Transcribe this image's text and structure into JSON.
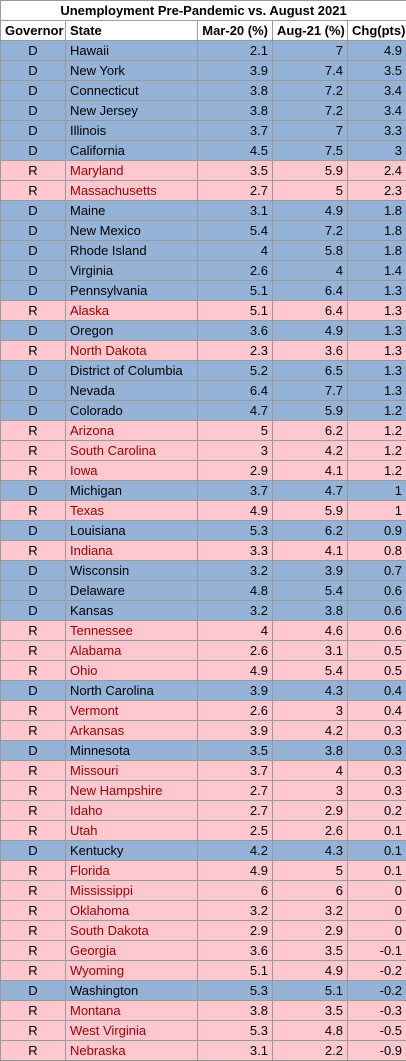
{
  "title": "Unemployment Pre-Pandemic vs. August 2021",
  "table": {
    "header": [
      "Governor",
      "State",
      "Mar-20 (%)",
      "Aug-21 (%)",
      "Chg(pts)"
    ],
    "row_colors": {
      "D": {
        "fill": "#95b3d7",
        "state": "#000000"
      },
      "R": {
        "fill": "#ffc7ce",
        "state": "#9c0006"
      }
    },
    "rows": [
      [
        "D",
        "Hawaii",
        2.1,
        7,
        4.9
      ],
      [
        "D",
        "New York",
        3.9,
        7.4,
        3.5
      ],
      [
        "D",
        "Connecticut",
        3.8,
        7.2,
        3.4
      ],
      [
        "D",
        "New Jersey",
        3.8,
        7.2,
        3.4
      ],
      [
        "D",
        "Illinois",
        3.7,
        7,
        3.3
      ],
      [
        "D",
        "California",
        4.5,
        7.5,
        3
      ],
      [
        "R",
        "Maryland",
        3.5,
        5.9,
        2.4
      ],
      [
        "R",
        "Massachusetts",
        2.7,
        5,
        2.3
      ],
      [
        "D",
        "Maine",
        3.1,
        4.9,
        1.8
      ],
      [
        "D",
        "New Mexico",
        5.4,
        7.2,
        1.8
      ],
      [
        "D",
        "Rhode Island",
        4,
        5.8,
        1.8
      ],
      [
        "D",
        "Virginia",
        2.6,
        4,
        1.4
      ],
      [
        "D",
        "Pennsylvania",
        5.1,
        6.4,
        1.3
      ],
      [
        "R",
        "Alaska",
        5.1,
        6.4,
        1.3
      ],
      [
        "D",
        "Oregon",
        3.6,
        4.9,
        1.3
      ],
      [
        "R",
        "North Dakota",
        2.3,
        3.6,
        1.3
      ],
      [
        "D",
        "District of Columbia",
        5.2,
        6.5,
        1.3
      ],
      [
        "D",
        "Nevada",
        6.4,
        7.7,
        1.3
      ],
      [
        "D",
        "Colorado",
        4.7,
        5.9,
        1.2
      ],
      [
        "R",
        "Arizona",
        5,
        6.2,
        1.2
      ],
      [
        "R",
        "South Carolina",
        3,
        4.2,
        1.2
      ],
      [
        "R",
        "Iowa",
        2.9,
        4.1,
        1.2
      ],
      [
        "D",
        "Michigan",
        3.7,
        4.7,
        1
      ],
      [
        "R",
        "Texas",
        4.9,
        5.9,
        1
      ],
      [
        "D",
        "Louisiana",
        5.3,
        6.2,
        0.9
      ],
      [
        "R",
        "Indiana",
        3.3,
        4.1,
        0.8
      ],
      [
        "D",
        "Wisconsin",
        3.2,
        3.9,
        0.7
      ],
      [
        "D",
        "Delaware",
        4.8,
        5.4,
        0.6
      ],
      [
        "D",
        "Kansas",
        3.2,
        3.8,
        0.6
      ],
      [
        "R",
        "Tennessee",
        4,
        4.6,
        0.6
      ],
      [
        "R",
        "Alabama",
        2.6,
        3.1,
        0.5
      ],
      [
        "R",
        "Ohio",
        4.9,
        5.4,
        0.5
      ],
      [
        "D",
        "North Carolina",
        3.9,
        4.3,
        0.4
      ],
      [
        "R",
        "Vermont",
        2.6,
        3,
        0.4
      ],
      [
        "R",
        "Arkansas",
        3.9,
        4.2,
        0.3
      ],
      [
        "D",
        "Minnesota",
        3.5,
        3.8,
        0.3
      ],
      [
        "R",
        "Missouri",
        3.7,
        4,
        0.3
      ],
      [
        "R",
        "New Hampshire",
        2.7,
        3,
        0.3
      ],
      [
        "R",
        "Idaho",
        2.7,
        2.9,
        0.2
      ],
      [
        "R",
        "Utah",
        2.5,
        2.6,
        0.1
      ],
      [
        "D",
        "Kentucky",
        4.2,
        4.3,
        0.1
      ],
      [
        "R",
        "Florida",
        4.9,
        5,
        0.1
      ],
      [
        "R",
        "Mississippi",
        6,
        6,
        0
      ],
      [
        "R",
        "Oklahoma",
        3.2,
        3.2,
        0
      ],
      [
        "R",
        "South Dakota",
        2.9,
        2.9,
        0
      ],
      [
        "R",
        "Georgia",
        3.6,
        3.5,
        -0.1
      ],
      [
        "R",
        "Wyoming",
        5.1,
        4.9,
        -0.2
      ],
      [
        "D",
        "Washington",
        5.3,
        5.1,
        -0.2
      ],
      [
        "R",
        "Montana",
        3.8,
        3.5,
        -0.3
      ],
      [
        "R",
        "West Virginia",
        5.3,
        4.8,
        -0.5
      ],
      [
        "R",
        "Nebraska",
        3.1,
        2.2,
        -0.9
      ]
    ]
  }
}
